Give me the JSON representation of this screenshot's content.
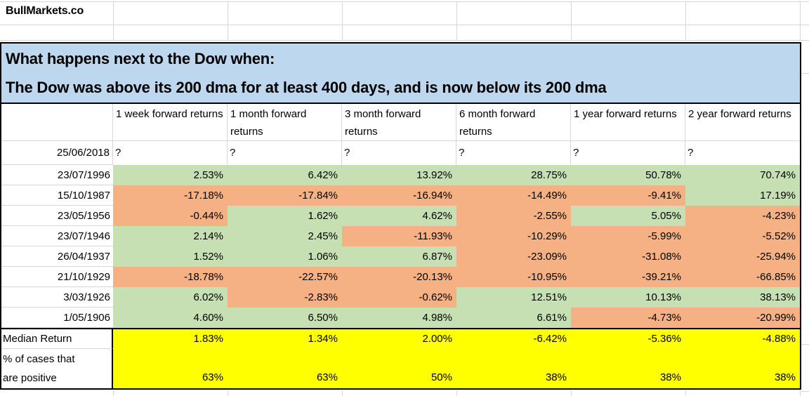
{
  "brand": "BullMarkets.co",
  "banner": {
    "line1": "What happens next to the Dow when:",
    "line2": "The Dow was above its 200 dma for at least 400 days, and is now below its 200 dma"
  },
  "table": {
    "columns": [
      "1 week forward returns",
      "1 month forward returns",
      "3 month forward returns",
      "6 month forward returns",
      "1 year forward returns",
      "2 year forward returns"
    ],
    "pending_row": {
      "date": "25/06/2018",
      "values": [
        "?",
        "?",
        "?",
        "?",
        "?",
        "?"
      ]
    },
    "rows": [
      {
        "date": "23/07/1996",
        "values": [
          "2.53%",
          "6.42%",
          "13.92%",
          "28.75%",
          "50.78%",
          "70.74%"
        ],
        "colors": [
          "g",
          "g",
          "g",
          "g",
          "g",
          "g"
        ]
      },
      {
        "date": "15/10/1987",
        "values": [
          "-17.18%",
          "-17.84%",
          "-16.94%",
          "-14.49%",
          "-9.41%",
          "17.19%"
        ],
        "colors": [
          "r",
          "r",
          "r",
          "r",
          "r",
          "g"
        ]
      },
      {
        "date": "23/05/1956",
        "values": [
          "-0.44%",
          "1.62%",
          "4.62%",
          "-2.55%",
          "5.05%",
          "-4.23%"
        ],
        "colors": [
          "r",
          "g",
          "g",
          "r",
          "g",
          "r"
        ]
      },
      {
        "date": "23/07/1946",
        "values": [
          "2.14%",
          "2.45%",
          "-11.93%",
          "-10.29%",
          "-5.99%",
          "-5.52%"
        ],
        "colors": [
          "g",
          "g",
          "r",
          "r",
          "r",
          "r"
        ]
      },
      {
        "date": "26/04/1937",
        "values": [
          "1.52%",
          "1.06%",
          "6.87%",
          "-23.09%",
          "-31.08%",
          "-25.94%"
        ],
        "colors": [
          "g",
          "g",
          "g",
          "r",
          "r",
          "r"
        ]
      },
      {
        "date": "21/10/1929",
        "values": [
          "-18.78%",
          "-22.57%",
          "-20.13%",
          "-10.95%",
          "-39.21%",
          "-66.85%"
        ],
        "colors": [
          "r",
          "r",
          "r",
          "r",
          "r",
          "r"
        ]
      },
      {
        "date": "3/03/1926",
        "values": [
          "6.02%",
          "-2.83%",
          "-0.62%",
          "12.51%",
          "10.13%",
          "38.13%"
        ],
        "colors": [
          "g",
          "r",
          "r",
          "g",
          "g",
          "g"
        ]
      },
      {
        "date": "1/05/1906",
        "values": [
          "4.60%",
          "6.50%",
          "4.98%",
          "6.61%",
          "-4.73%",
          "-20.99%"
        ],
        "colors": [
          "g",
          "g",
          "g",
          "g",
          "r",
          "r"
        ]
      }
    ],
    "median": {
      "label": "Median Return",
      "values": [
        "1.83%",
        "1.34%",
        "2.00%",
        "-6.42%",
        "-5.36%",
        "-4.88%"
      ]
    },
    "positive": {
      "label": "% of cases that are positive",
      "values": [
        "63%",
        "63%",
        "50%",
        "38%",
        "38%",
        "38%"
      ]
    }
  },
  "colors": {
    "positive_fill": "#C6E0B4",
    "negative_fill": "#F5B183",
    "summary_fill": "#FFFF00",
    "banner_fill": "#BDD7EE",
    "gridline": "#D6D6D6",
    "border": "#000000"
  }
}
